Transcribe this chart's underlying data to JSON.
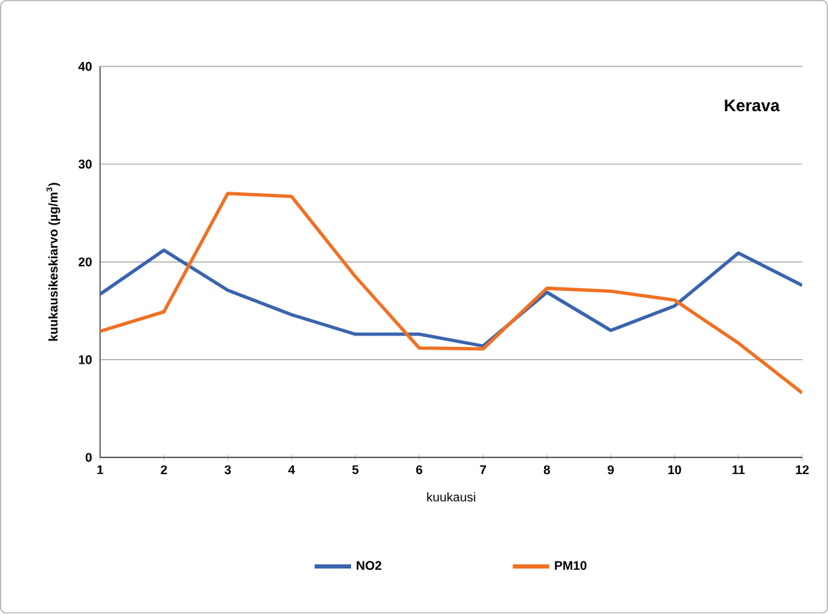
{
  "chart_data": {
    "type": "line",
    "xlabel": "kuukausi",
    "ylabel": "kuukausikeskiarvo  (µg/m$^{3}$)",
    "annotations": [
      "Kerava"
    ],
    "x": [
      1,
      2,
      3,
      4,
      5,
      6,
      7,
      8,
      9,
      10,
      11,
      12
    ],
    "series": [
      {
        "name": "NO2",
        "color": "#3a64ad",
        "values": [
          16.7,
          21.2,
          17.1,
          14.6,
          12.6,
          12.6,
          11.4,
          16.9,
          13.0,
          15.5,
          20.9,
          17.6
        ]
      },
      {
        "name": "PM10",
        "color": "#f07023",
        "values": [
          12.9,
          14.9,
          27.0,
          26.7,
          18.5,
          11.2,
          11.1,
          17.3,
          17.0,
          16.1,
          11.7,
          6.6
        ]
      }
    ],
    "xlim": [
      1,
      12
    ],
    "xticks": [
      1,
      2,
      3,
      4,
      5,
      6,
      7,
      8,
      9,
      10,
      11,
      12
    ],
    "ylim": [
      0,
      40
    ],
    "yticks": [
      0,
      10,
      20,
      30,
      40
    ],
    "grid": "y",
    "legend": "bottom",
    "marker": "none",
    "line_style": "solid"
  }
}
